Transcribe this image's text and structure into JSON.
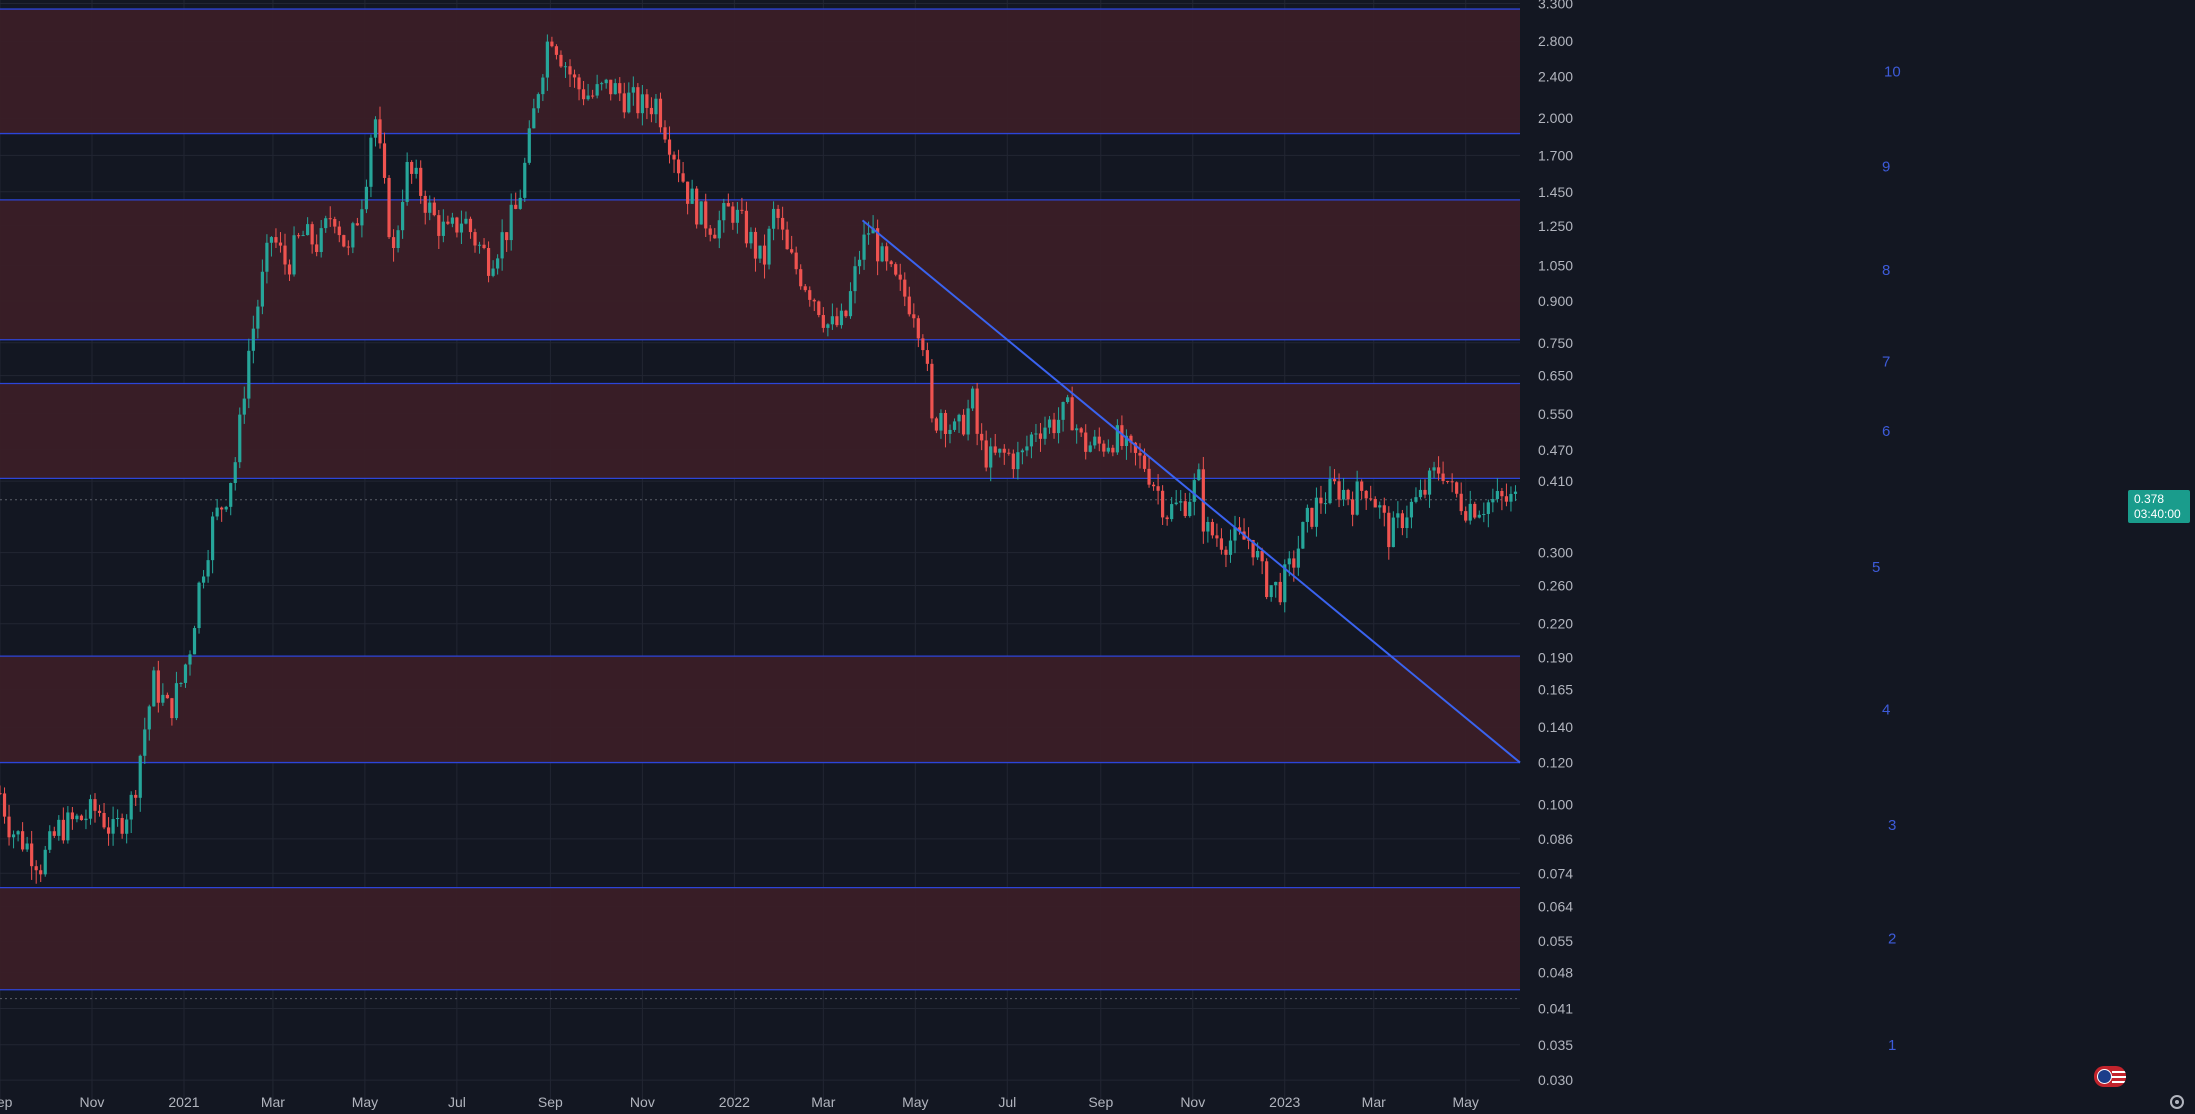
{
  "chart_data": {
    "type": "candlestick",
    "scale": "log",
    "grid": true,
    "ylim": [
      0.0275,
      3.35
    ],
    "y_ticks": [
      "3.300",
      "2.800",
      "2.400",
      "2.000",
      "1.700",
      "1.450",
      "1.250",
      "1.050",
      "0.900",
      "0.750",
      "0.650",
      "0.550",
      "0.470",
      "0.410",
      "0.300",
      "0.260",
      "0.220",
      "0.190",
      "0.165",
      "0.140",
      "0.120",
      "0.100",
      "0.086",
      "0.074",
      "0.064",
      "0.055",
      "0.048",
      "0.041",
      "0.035",
      "0.030"
    ],
    "x_ticks": [
      {
        "label": "Sep",
        "date": "2020-09-01"
      },
      {
        "label": "Nov",
        "date": "2020-11-01"
      },
      {
        "label": "2021",
        "date": "2021-01-01"
      },
      {
        "label": "Mar",
        "date": "2021-03-01"
      },
      {
        "label": "May",
        "date": "2021-05-01"
      },
      {
        "label": "Jul",
        "date": "2021-07-01"
      },
      {
        "label": "Sep",
        "date": "2021-09-01"
      },
      {
        "label": "Nov",
        "date": "2021-11-01"
      },
      {
        "label": "2022",
        "date": "2022-01-01"
      },
      {
        "label": "Mar",
        "date": "2022-03-01"
      },
      {
        "label": "May",
        "date": "2022-05-01"
      },
      {
        "label": "Jul",
        "date": "2022-07-01"
      },
      {
        "label": "Sep",
        "date": "2022-09-01"
      },
      {
        "label": "Nov",
        "date": "2022-11-01"
      },
      {
        "label": "2023",
        "date": "2023-01-01"
      },
      {
        "label": "Mar",
        "date": "2023-03-01"
      },
      {
        "label": "May",
        "date": "2023-05-01"
      }
    ],
    "x_range": [
      "2020-09-01",
      "2023-06-06"
    ],
    "zone_levels": [
      0.0445,
      0.0695,
      0.12,
      0.191,
      0.415,
      0.628,
      0.76,
      1.4,
      1.87,
      3.22
    ],
    "zones": [
      {
        "label": "1",
        "low": 0.0275,
        "high": 0.0445,
        "shaded": false
      },
      {
        "label": "2",
        "low": 0.0445,
        "high": 0.0695,
        "shaded": true
      },
      {
        "label": "3",
        "low": 0.0695,
        "high": 0.12,
        "shaded": false
      },
      {
        "label": "4",
        "low": 0.12,
        "high": 0.191,
        "shaded": true
      },
      {
        "label": "5",
        "low": 0.191,
        "high": 0.415,
        "shaded": false
      },
      {
        "label": "6",
        "low": 0.415,
        "high": 0.628,
        "shaded": true
      },
      {
        "label": "7",
        "low": 0.628,
        "high": 0.76,
        "shaded": false
      },
      {
        "label": "8",
        "low": 0.76,
        "high": 1.4,
        "shaded": true
      },
      {
        "label": "9",
        "low": 1.4,
        "high": 1.87,
        "shaded": false
      },
      {
        "label": "10",
        "low": 1.87,
        "high": 3.22,
        "shaded": true
      }
    ],
    "trendline": {
      "from": {
        "date": "2022-03-27",
        "price": 1.28
      },
      "to": {
        "date": "2023-06-06",
        "price": 0.12
      }
    },
    "dotted_levels": [
      0.378,
      0.0428
    ],
    "price_path": [
      [
        "2020-09-01",
        0.105
      ],
      [
        "2020-09-08",
        0.09
      ],
      [
        "2020-09-20",
        0.083
      ],
      [
        "2020-09-28",
        0.077
      ],
      [
        "2020-10-10",
        0.09
      ],
      [
        "2020-10-25",
        0.094
      ],
      [
        "2020-11-05",
        0.098
      ],
      [
        "2020-11-15",
        0.088
      ],
      [
        "2020-11-28",
        0.102
      ],
      [
        "2020-12-05",
        0.135
      ],
      [
        "2020-12-12",
        0.17
      ],
      [
        "2020-12-22",
        0.15
      ],
      [
        "2020-12-30",
        0.17
      ],
      [
        "2021-01-05",
        0.2
      ],
      [
        "2021-01-12",
        0.27
      ],
      [
        "2021-01-20",
        0.34
      ],
      [
        "2021-01-28",
        0.38
      ],
      [
        "2021-02-05",
        0.46
      ],
      [
        "2021-02-12",
        0.7
      ],
      [
        "2021-02-20",
        0.92
      ],
      [
        "2021-02-28",
        1.2
      ],
      [
        "2021-03-10",
        1.05
      ],
      [
        "2021-03-20",
        1.2
      ],
      [
        "2021-04-01",
        1.15
      ],
      [
        "2021-04-10",
        1.35
      ],
      [
        "2021-04-20",
        1.1
      ],
      [
        "2021-05-01",
        1.5
      ],
      [
        "2021-05-07",
        2.1
      ],
      [
        "2021-05-14",
        1.45
      ],
      [
        "2021-05-20",
        1.1
      ],
      [
        "2021-05-28",
        1.6
      ],
      [
        "2021-06-05",
        1.5
      ],
      [
        "2021-06-15",
        1.3
      ],
      [
        "2021-06-25",
        1.2
      ],
      [
        "2021-07-05",
        1.3
      ],
      [
        "2021-07-15",
        1.15
      ],
      [
        "2021-07-22",
        1.08
      ],
      [
        "2021-08-01",
        1.2
      ],
      [
        "2021-08-10",
        1.35
      ],
      [
        "2021-08-18",
        1.8
      ],
      [
        "2021-08-25",
        2.4
      ],
      [
        "2021-09-01",
        2.95
      ],
      [
        "2021-09-08",
        2.65
      ],
      [
        "2021-09-18",
        2.3
      ],
      [
        "2021-09-28",
        2.2
      ],
      [
        "2021-10-10",
        2.3
      ],
      [
        "2021-10-20",
        2.2
      ],
      [
        "2021-11-01",
        2.1
      ],
      [
        "2021-11-10",
        2.15
      ],
      [
        "2021-11-20",
        1.8
      ],
      [
        "2021-12-01",
        1.45
      ],
      [
        "2021-12-10",
        1.3
      ],
      [
        "2021-12-20",
        1.25
      ],
      [
        "2021-12-30",
        1.35
      ],
      [
        "2022-01-10",
        1.2
      ],
      [
        "2022-01-20",
        1.05
      ],
      [
        "2022-01-28",
        1.35
      ],
      [
        "2022-02-05",
        1.1
      ],
      [
        "2022-02-15",
        1.0
      ],
      [
        "2022-02-25",
        0.9
      ],
      [
        "2022-03-05",
        0.8
      ],
      [
        "2022-03-15",
        0.82
      ],
      [
        "2022-03-25",
        1.1
      ],
      [
        "2022-04-01",
        1.25
      ],
      [
        "2022-04-10",
        1.05
      ],
      [
        "2022-04-20",
        0.95
      ],
      [
        "2022-04-30",
        0.88
      ],
      [
        "2022-05-07",
        0.75
      ],
      [
        "2022-05-12",
        0.52
      ],
      [
        "2022-05-18",
        0.56
      ],
      [
        "2022-05-28",
        0.5
      ],
      [
        "2022-06-08",
        0.58
      ],
      [
        "2022-06-12",
        0.48
      ],
      [
        "2022-06-20",
        0.45
      ],
      [
        "2022-06-30",
        0.46
      ],
      [
        "2022-07-10",
        0.45
      ],
      [
        "2022-07-20",
        0.52
      ],
      [
        "2022-08-01",
        0.53
      ],
      [
        "2022-08-12",
        0.56
      ],
      [
        "2022-08-20",
        0.48
      ],
      [
        "2022-09-01",
        0.48
      ],
      [
        "2022-09-10",
        0.5
      ],
      [
        "2022-09-20",
        0.46
      ],
      [
        "2022-10-01",
        0.44
      ],
      [
        "2022-10-15",
        0.36
      ],
      [
        "2022-10-25",
        0.37
      ],
      [
        "2022-11-05",
        0.41
      ],
      [
        "2022-11-09",
        0.33
      ],
      [
        "2022-11-20",
        0.32
      ],
      [
        "2022-12-01",
        0.315
      ],
      [
        "2022-12-10",
        0.32
      ],
      [
        "2022-12-18",
        0.265
      ],
      [
        "2022-12-28",
        0.255
      ],
      [
        "2023-01-05",
        0.28
      ],
      [
        "2023-01-15",
        0.34
      ],
      [
        "2023-01-25",
        0.38
      ],
      [
        "2023-02-05",
        0.4
      ],
      [
        "2023-02-15",
        0.38
      ],
      [
        "2023-02-25",
        0.405
      ],
      [
        "2023-03-05",
        0.36
      ],
      [
        "2023-03-12",
        0.32
      ],
      [
        "2023-03-22",
        0.36
      ],
      [
        "2023-04-01",
        0.38
      ],
      [
        "2023-04-10",
        0.42
      ],
      [
        "2023-04-15",
        0.44
      ],
      [
        "2023-04-22",
        0.39
      ],
      [
        "2023-05-01",
        0.37
      ],
      [
        "2023-05-10",
        0.37
      ],
      [
        "2023-05-20",
        0.375
      ],
      [
        "2023-06-05",
        0.378
      ]
    ],
    "current_price": {
      "value": "0.378",
      "countdown": "03:40:00"
    },
    "colors": {
      "background": "#131722",
      "zone_fill": "#3a1e27",
      "zone_line": "#2c45d8",
      "trendline": "#3a63ef",
      "up": "#26a69a",
      "down": "#ef5350",
      "grid": "#222633",
      "badge": "#1a9c8c"
    }
  }
}
